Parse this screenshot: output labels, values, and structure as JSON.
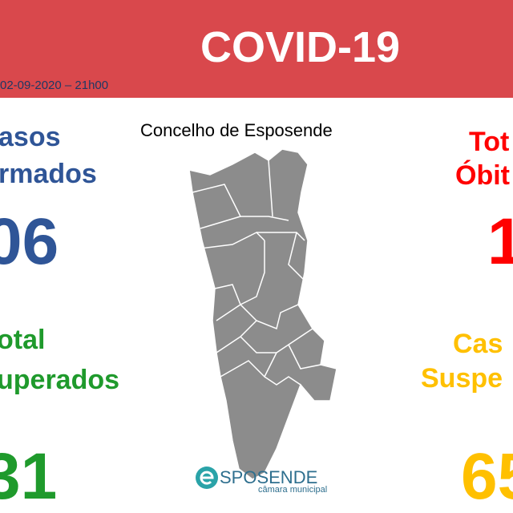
{
  "header": {
    "title": "COVID-19",
    "date": "02-09-2020 – 21h00"
  },
  "map": {
    "title": "Concelho de Esposende"
  },
  "left": {
    "confirmed": {
      "line1": "asos",
      "line2": "rmados",
      "value": "06"
    },
    "recovered": {
      "line1": "otal",
      "line2": "uperados",
      "value": "31"
    }
  },
  "right": {
    "deaths": {
      "line1": "Tot",
      "line2": "Óbit",
      "value": "1"
    },
    "suspected": {
      "line1": "Cas",
      "line2": "Suspe",
      "value": "65"
    }
  },
  "logo": {
    "name": "SPOSENDE",
    "subtitle": "câmara municipal"
  }
}
